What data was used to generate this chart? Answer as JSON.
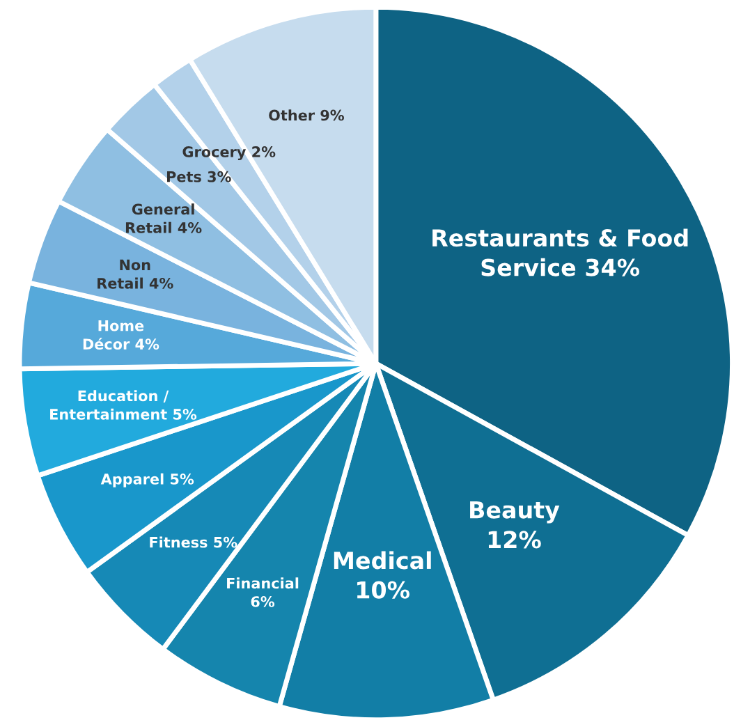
{
  "chart_data": {
    "type": "pie",
    "categories": [
      "Restaurants & Food Service",
      "Beauty",
      "Medical",
      "Financial",
      "Fitness",
      "Apparel",
      "Education / Entertainment",
      "Home Décor",
      "Non Retail",
      "General Retail",
      "Pets",
      "Grocery",
      "Other"
    ],
    "values": [
      34,
      12,
      10,
      6,
      5,
      5,
      5,
      4,
      4,
      4,
      3,
      2,
      9
    ],
    "colors": [
      "#0e6384",
      "#0f6f93",
      "#127ea6",
      "#1585ad",
      "#1689b6",
      "#1997cb",
      "#22aadd",
      "#56a9da",
      "#79b3de",
      "#8fbfe2",
      "#a2c8e6",
      "#b3d1ea",
      "#c6dcee"
    ],
    "value_labels": [
      "34%",
      "12%",
      "10%",
      "6%",
      "5%",
      "5%",
      "5%",
      "4%",
      "4%",
      "4%",
      "3%",
      "2%",
      "9%"
    ]
  }
}
